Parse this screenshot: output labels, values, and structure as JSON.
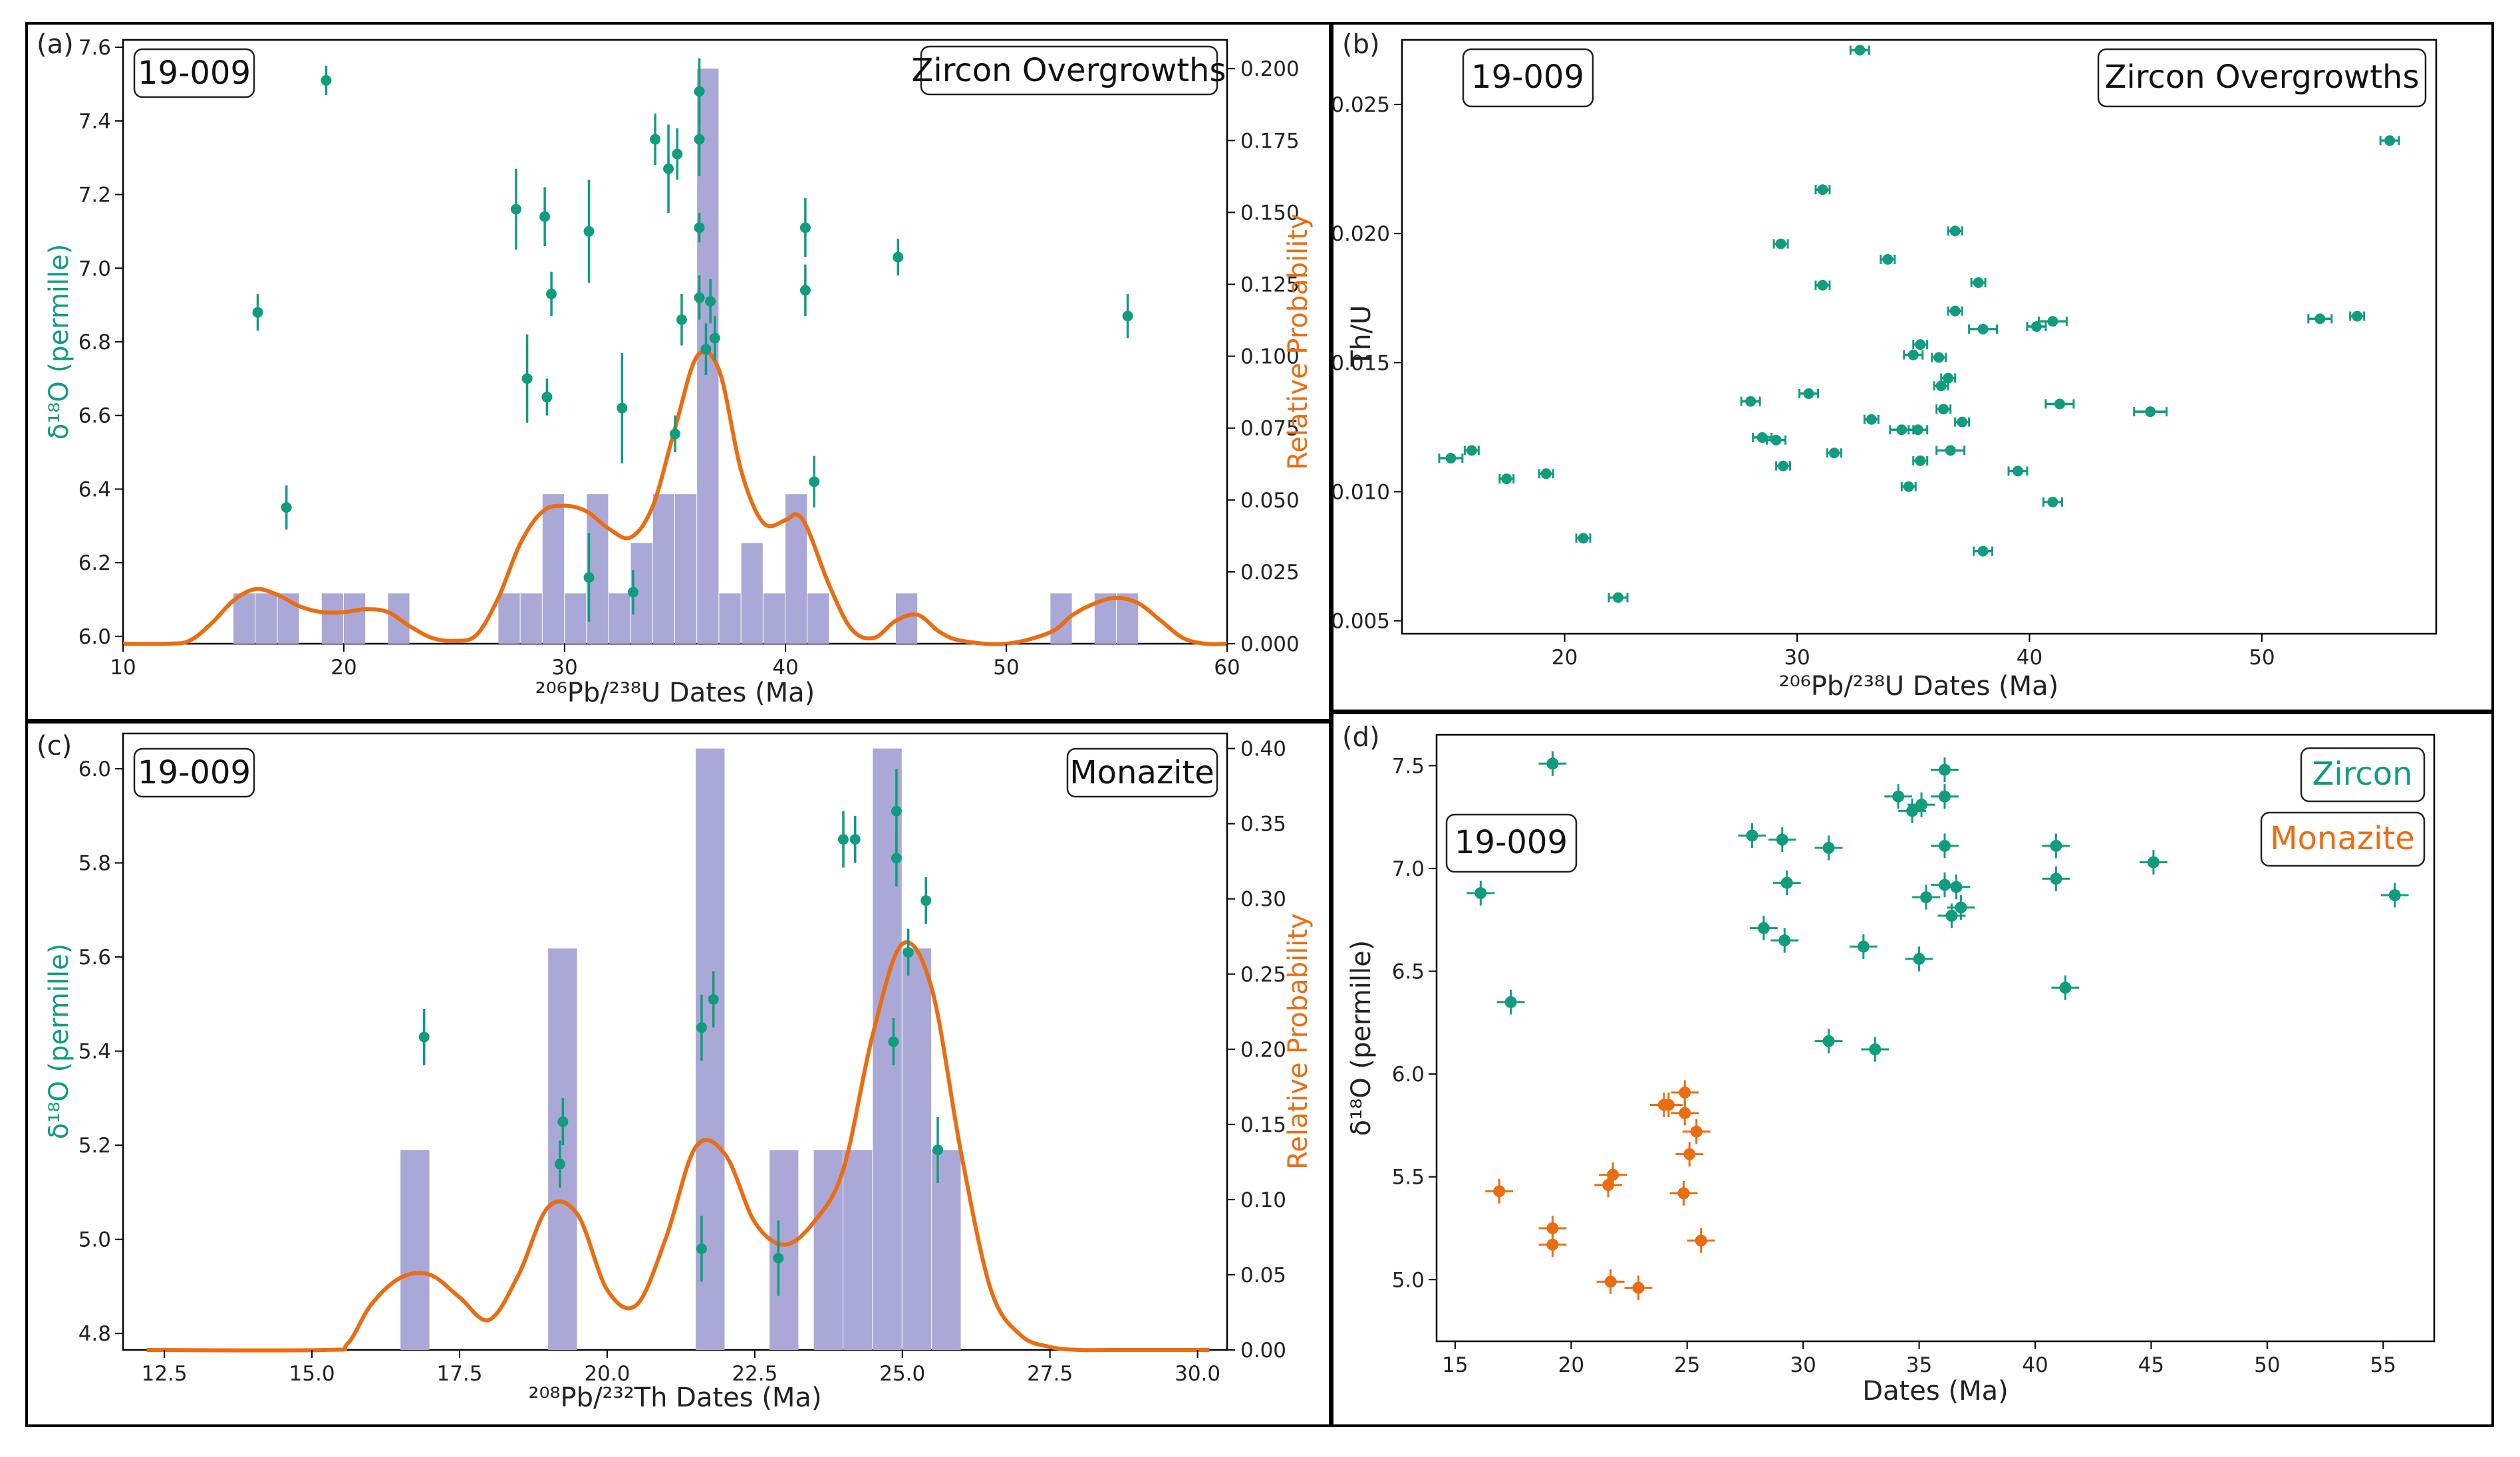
{
  "colors": {
    "zircon": "#119c7e",
    "monazite": "#ea6d12",
    "kde": "#ea6d12",
    "hist": "#aaa8d6"
  },
  "panels": [
    {
      "letter": "(a)",
      "sample": "19-009",
      "label": "Zircon Overgrowths"
    },
    {
      "letter": "(b)",
      "sample": "19-009",
      "label": "Zircon Overgrowths"
    },
    {
      "letter": "(c)",
      "sample": "19-009",
      "label": "Monazite"
    },
    {
      "letter": "(d)",
      "sample": "19-009",
      "legend": [
        "Zircon",
        "Monazite"
      ]
    }
  ],
  "chart_data": [
    {
      "panel": "(a)",
      "type": "scatter",
      "title": "Zircon Overgrowths",
      "xlabel": "²⁰⁶Pb/²³⁸U Dates (Ma)",
      "ylabel": "δ¹⁸O (permille)",
      "y2label": "Relative Probability",
      "xlim": [
        10,
        60
      ],
      "ylim": [
        5.98,
        7.62
      ],
      "y2lim": [
        0,
        0.21
      ],
      "xticks": [
        10,
        20,
        30,
        40,
        50,
        60
      ],
      "yticks": [
        6.0,
        6.2,
        6.4,
        6.6,
        6.8,
        7.0,
        7.2,
        7.4,
        7.6
      ],
      "y2ticks": [
        0.0,
        0.025,
        0.05,
        0.075,
        0.1,
        0.125,
        0.15,
        0.175,
        0.2
      ],
      "points": [
        {
          "x": 16.1,
          "y": 6.88,
          "e": 0.05
        },
        {
          "x": 17.4,
          "y": 6.35,
          "e": 0.06
        },
        {
          "x": 19.2,
          "y": 7.51,
          "e": 0.04
        },
        {
          "x": 27.8,
          "y": 7.16,
          "e": 0.11
        },
        {
          "x": 28.3,
          "y": 6.7,
          "e": 0.12
        },
        {
          "x": 29.1,
          "y": 7.14,
          "e": 0.08
        },
        {
          "x": 29.2,
          "y": 6.65,
          "e": 0.05
        },
        {
          "x": 29.4,
          "y": 6.93,
          "e": 0.06
        },
        {
          "x": 31.1,
          "y": 7.1,
          "e": 0.14
        },
        {
          "x": 31.1,
          "y": 6.16,
          "e": 0.12
        },
        {
          "x": 32.6,
          "y": 6.62,
          "e": 0.15
        },
        {
          "x": 33.1,
          "y": 6.12,
          "e": 0.06
        },
        {
          "x": 34.1,
          "y": 7.35,
          "e": 0.07
        },
        {
          "x": 34.7,
          "y": 7.27,
          "e": 0.12
        },
        {
          "x": 35.1,
          "y": 7.31,
          "e": 0.07
        },
        {
          "x": 35.0,
          "y": 6.55,
          "e": 0.05
        },
        {
          "x": 35.3,
          "y": 6.86,
          "e": 0.07
        },
        {
          "x": 36.1,
          "y": 7.48,
          "e": 0.09
        },
        {
          "x": 36.1,
          "y": 7.35,
          "e": 0.1
        },
        {
          "x": 36.1,
          "y": 7.11,
          "e": 0.04
        },
        {
          "x": 36.1,
          "y": 6.92,
          "e": 0.06
        },
        {
          "x": 36.4,
          "y": 6.78,
          "e": 0.07
        },
        {
          "x": 36.6,
          "y": 6.91,
          "e": 0.06
        },
        {
          "x": 36.8,
          "y": 6.81,
          "e": 0.06
        },
        {
          "x": 40.9,
          "y": 6.94,
          "e": 0.07
        },
        {
          "x": 40.9,
          "y": 7.11,
          "e": 0.08
        },
        {
          "x": 41.3,
          "y": 6.42,
          "e": 0.07
        },
        {
          "x": 45.1,
          "y": 7.03,
          "e": 0.05
        },
        {
          "x": 55.5,
          "y": 6.87,
          "e": 0.06
        }
      ],
      "histogram": {
        "bin_width": 1.0,
        "bins": [
          {
            "x": 15,
            "v": 0.0175
          },
          {
            "x": 16,
            "v": 0.0175
          },
          {
            "x": 17,
            "v": 0.0175
          },
          {
            "x": 19,
            "v": 0.0175
          },
          {
            "x": 20,
            "v": 0.0175
          },
          {
            "x": 22,
            "v": 0.0175
          },
          {
            "x": 27,
            "v": 0.0175
          },
          {
            "x": 28,
            "v": 0.0175
          },
          {
            "x": 29,
            "v": 0.052
          },
          {
            "x": 30,
            "v": 0.0175
          },
          {
            "x": 31,
            "v": 0.052
          },
          {
            "x": 32,
            "v": 0.0175
          },
          {
            "x": 33,
            "v": 0.035
          },
          {
            "x": 34,
            "v": 0.052
          },
          {
            "x": 35,
            "v": 0.052
          },
          {
            "x": 36,
            "v": 0.2
          },
          {
            "x": 37,
            "v": 0.0175
          },
          {
            "x": 38,
            "v": 0.035
          },
          {
            "x": 39,
            "v": 0.0175
          },
          {
            "x": 40,
            "v": 0.052
          },
          {
            "x": 41,
            "v": 0.0175
          },
          {
            "x": 45,
            "v": 0.0175
          },
          {
            "x": 52,
            "v": 0.0175
          },
          {
            "x": 54,
            "v": 0.0175
          },
          {
            "x": 55,
            "v": 0.0175
          }
        ]
      },
      "kde": {
        "x": [
          10,
          12,
          13,
          14,
          15,
          16,
          17,
          18,
          19,
          20,
          21,
          22,
          23,
          24,
          25,
          26,
          27,
          28,
          29,
          30,
          31,
          32,
          33,
          34,
          35,
          36,
          37,
          38,
          39,
          40,
          40.5,
          41,
          42,
          43,
          44,
          45,
          46,
          47,
          48,
          50,
          52,
          53,
          54,
          55,
          56,
          57,
          58,
          59,
          60
        ],
        "y": [
          0,
          0,
          0.001,
          0.007,
          0.015,
          0.019,
          0.017,
          0.013,
          0.011,
          0.011,
          0.012,
          0.011,
          0.006,
          0.002,
          0.001,
          0.003,
          0.016,
          0.035,
          0.046,
          0.048,
          0.046,
          0.04,
          0.037,
          0.048,
          0.075,
          0.1,
          0.095,
          0.06,
          0.042,
          0.043,
          0.045,
          0.04,
          0.02,
          0.005,
          0.002,
          0.008,
          0.01,
          0.004,
          0.001,
          0.0,
          0.004,
          0.01,
          0.014,
          0.016,
          0.014,
          0.008,
          0.002,
          0.0,
          0
        ]
      }
    },
    {
      "panel": "(b)",
      "type": "scatter",
      "title": "Zircon Overgrowths",
      "xlabel": "²⁰⁶Pb/²³⁸U Dates (Ma)",
      "ylabel": "Th/U",
      "xlim": [
        13,
        57.5
      ],
      "ylim": [
        0.0045,
        0.0275
      ],
      "xticks": [
        20,
        30,
        40,
        50
      ],
      "yticks": [
        0.005,
        0.01,
        0.015,
        0.02,
        0.025
      ],
      "points": [
        {
          "x": 15.1,
          "y": 0.0113,
          "e": 0.5
        },
        {
          "x": 16.0,
          "y": 0.0116,
          "e": 0.3
        },
        {
          "x": 17.5,
          "y": 0.0105,
          "e": 0.3
        },
        {
          "x": 19.2,
          "y": 0.0107,
          "e": 0.3
        },
        {
          "x": 20.8,
          "y": 0.0082,
          "e": 0.3
        },
        {
          "x": 22.3,
          "y": 0.0059,
          "e": 0.4
        },
        {
          "x": 28.0,
          "y": 0.0135,
          "e": 0.4
        },
        {
          "x": 28.5,
          "y": 0.0121,
          "e": 0.4
        },
        {
          "x": 29.1,
          "y": 0.012,
          "e": 0.4
        },
        {
          "x": 29.4,
          "y": 0.011,
          "e": 0.3
        },
        {
          "x": 29.3,
          "y": 0.0196,
          "e": 0.3
        },
        {
          "x": 30.5,
          "y": 0.0138,
          "e": 0.4
        },
        {
          "x": 31.1,
          "y": 0.0217,
          "e": 0.3
        },
        {
          "x": 31.1,
          "y": 0.018,
          "e": 0.3
        },
        {
          "x": 31.6,
          "y": 0.0115,
          "e": 0.3
        },
        {
          "x": 32.7,
          "y": 0.0271,
          "e": 0.4
        },
        {
          "x": 33.2,
          "y": 0.0128,
          "e": 0.3
        },
        {
          "x": 33.9,
          "y": 0.019,
          "e": 0.3
        },
        {
          "x": 34.5,
          "y": 0.0124,
          "e": 0.5
        },
        {
          "x": 34.8,
          "y": 0.0102,
          "e": 0.3
        },
        {
          "x": 35.0,
          "y": 0.0153,
          "e": 0.4
        },
        {
          "x": 35.2,
          "y": 0.0124,
          "e": 0.4
        },
        {
          "x": 35.3,
          "y": 0.0157,
          "e": 0.3
        },
        {
          "x": 35.3,
          "y": 0.0112,
          "e": 0.3
        },
        {
          "x": 36.1,
          "y": 0.0152,
          "e": 0.3
        },
        {
          "x": 36.2,
          "y": 0.0141,
          "e": 0.3
        },
        {
          "x": 36.3,
          "y": 0.0132,
          "e": 0.3
        },
        {
          "x": 36.5,
          "y": 0.0144,
          "e": 0.3
        },
        {
          "x": 36.6,
          "y": 0.0116,
          "e": 0.6
        },
        {
          "x": 36.8,
          "y": 0.017,
          "e": 0.3
        },
        {
          "x": 36.8,
          "y": 0.0201,
          "e": 0.3
        },
        {
          "x": 37.1,
          "y": 0.0127,
          "e": 0.3
        },
        {
          "x": 37.8,
          "y": 0.0181,
          "e": 0.3
        },
        {
          "x": 38.0,
          "y": 0.0163,
          "e": 0.6
        },
        {
          "x": 38.0,
          "y": 0.0077,
          "e": 0.4
        },
        {
          "x": 39.5,
          "y": 0.0108,
          "e": 0.4
        },
        {
          "x": 40.3,
          "y": 0.0164,
          "e": 0.4
        },
        {
          "x": 41.0,
          "y": 0.0166,
          "e": 0.6
        },
        {
          "x": 41.0,
          "y": 0.0096,
          "e": 0.4
        },
        {
          "x": 41.3,
          "y": 0.0134,
          "e": 0.6
        },
        {
          "x": 45.2,
          "y": 0.0131,
          "e": 0.7
        },
        {
          "x": 52.5,
          "y": 0.0167,
          "e": 0.5
        },
        {
          "x": 54.1,
          "y": 0.0168,
          "e": 0.3
        },
        {
          "x": 55.5,
          "y": 0.0236,
          "e": 0.4
        }
      ]
    },
    {
      "panel": "(c)",
      "type": "scatter",
      "title": "Monazite",
      "xlabel": "²⁰⁸Pb/²³²Th Dates (Ma)",
      "ylabel": "δ¹⁸O (permille)",
      "y2label": "Relative Probability",
      "xlim": [
        11.8,
        30.5
      ],
      "ylim": [
        4.765,
        6.075
      ],
      "y2lim": [
        0,
        0.41
      ],
      "xticks": [
        12.5,
        15.0,
        17.5,
        20.0,
        22.5,
        25.0,
        27.5,
        30.0
      ],
      "yticks": [
        4.8,
        5.0,
        5.2,
        5.4,
        5.6,
        5.8,
        6.0
      ],
      "y2ticks": [
        0.0,
        0.05,
        0.1,
        0.15,
        0.2,
        0.25,
        0.3,
        0.35,
        0.4
      ],
      "points": [
        {
          "x": 16.9,
          "y": 5.43,
          "e": 0.06
        },
        {
          "x": 19.2,
          "y": 5.16,
          "e": 0.05
        },
        {
          "x": 19.25,
          "y": 5.25,
          "e": 0.05
        },
        {
          "x": 21.6,
          "y": 5.45,
          "e": 0.07
        },
        {
          "x": 21.6,
          "y": 4.98,
          "e": 0.07
        },
        {
          "x": 21.8,
          "y": 5.51,
          "e": 0.06
        },
        {
          "x": 22.9,
          "y": 4.96,
          "e": 0.08
        },
        {
          "x": 24.0,
          "y": 5.85,
          "e": 0.06
        },
        {
          "x": 24.2,
          "y": 5.85,
          "e": 0.05
        },
        {
          "x": 24.9,
          "y": 5.91,
          "e": 0.09
        },
        {
          "x": 24.9,
          "y": 5.81,
          "e": 0.06
        },
        {
          "x": 24.85,
          "y": 5.42,
          "e": 0.05
        },
        {
          "x": 25.1,
          "y": 5.61,
          "e": 0.05
        },
        {
          "x": 25.4,
          "y": 5.72,
          "e": 0.05
        },
        {
          "x": 25.6,
          "y": 5.19,
          "e": 0.07
        }
      ],
      "histogram": {
        "bin_width": 0.5,
        "bins": [
          {
            "x": 16.5,
            "v": 0.133
          },
          {
            "x": 19.0,
            "v": 0.267
          },
          {
            "x": 21.5,
            "v": 0.4
          },
          {
            "x": 22.75,
            "v": 0.133
          },
          {
            "x": 23.5,
            "v": 0.133
          },
          {
            "x": 24.0,
            "v": 0.133
          },
          {
            "x": 24.5,
            "v": 0.4
          },
          {
            "x": 25.0,
            "v": 0.267
          },
          {
            "x": 25.5,
            "v": 0.133
          }
        ]
      },
      "kde": {
        "x": [
          12.2,
          15.2,
          15.6,
          16.0,
          16.5,
          17.0,
          17.5,
          18.0,
          18.5,
          19.0,
          19.5,
          20.0,
          20.5,
          21.0,
          21.5,
          22.0,
          22.5,
          23.0,
          23.5,
          24.0,
          24.5,
          25.0,
          25.5,
          26.0,
          26.5,
          27.0,
          27.5,
          28.0,
          28.5,
          29.0,
          29.5,
          30.2
        ],
        "y": [
          0,
          0,
          0.004,
          0.03,
          0.048,
          0.05,
          0.035,
          0.02,
          0.05,
          0.095,
          0.09,
          0.04,
          0.03,
          0.075,
          0.135,
          0.13,
          0.085,
          0.07,
          0.085,
          0.12,
          0.21,
          0.27,
          0.24,
          0.13,
          0.04,
          0.01,
          0.002,
          0,
          0,
          0,
          0,
          0
        ]
      }
    },
    {
      "panel": "(d)",
      "type": "scatter",
      "xlabel": "Dates (Ma)",
      "ylabel": "δ¹⁸O (permille)",
      "xlim": [
        14.2,
        57.2
      ],
      "ylim": [
        4.7,
        7.65
      ],
      "xticks": [
        15,
        20,
        25,
        30,
        35,
        40,
        45,
        50,
        55
      ],
      "yticks": [
        5.0,
        5.5,
        6.0,
        6.5,
        7.0,
        7.5
      ],
      "series": [
        {
          "name": "Zircon",
          "points": [
            {
              "x": 16.1,
              "y": 6.88
            },
            {
              "x": 17.4,
              "y": 6.35
            },
            {
              "x": 19.2,
              "y": 7.51
            },
            {
              "x": 27.8,
              "y": 7.16
            },
            {
              "x": 28.3,
              "y": 6.71
            },
            {
              "x": 29.1,
              "y": 7.14
            },
            {
              "x": 29.2,
              "y": 6.65
            },
            {
              "x": 29.3,
              "y": 6.93
            },
            {
              "x": 31.1,
              "y": 7.1
            },
            {
              "x": 31.1,
              "y": 6.16
            },
            {
              "x": 32.6,
              "y": 6.62
            },
            {
              "x": 33.1,
              "y": 6.12
            },
            {
              "x": 34.1,
              "y": 7.35
            },
            {
              "x": 34.7,
              "y": 7.28
            },
            {
              "x": 35.1,
              "y": 7.31
            },
            {
              "x": 35.0,
              "y": 6.56
            },
            {
              "x": 35.3,
              "y": 6.86
            },
            {
              "x": 36.1,
              "y": 7.48
            },
            {
              "x": 36.1,
              "y": 7.35
            },
            {
              "x": 36.1,
              "y": 7.11
            },
            {
              "x": 36.1,
              "y": 6.92
            },
            {
              "x": 36.4,
              "y": 6.77
            },
            {
              "x": 36.6,
              "y": 6.91
            },
            {
              "x": 36.8,
              "y": 6.81
            },
            {
              "x": 40.9,
              "y": 6.95
            },
            {
              "x": 40.9,
              "y": 7.11
            },
            {
              "x": 41.3,
              "y": 6.42
            },
            {
              "x": 45.1,
              "y": 7.03
            },
            {
              "x": 55.5,
              "y": 6.87
            }
          ]
        },
        {
          "name": "Monazite",
          "points": [
            {
              "x": 16.9,
              "y": 5.43
            },
            {
              "x": 19.2,
              "y": 5.17
            },
            {
              "x": 19.2,
              "y": 5.25
            },
            {
              "x": 21.6,
              "y": 5.46
            },
            {
              "x": 21.8,
              "y": 5.51
            },
            {
              "x": 21.7,
              "y": 4.99
            },
            {
              "x": 22.9,
              "y": 4.96
            },
            {
              "x": 24.0,
              "y": 5.85
            },
            {
              "x": 24.2,
              "y": 5.85
            },
            {
              "x": 24.9,
              "y": 5.91
            },
            {
              "x": 24.9,
              "y": 5.81
            },
            {
              "x": 24.85,
              "y": 5.42
            },
            {
              "x": 25.1,
              "y": 5.61
            },
            {
              "x": 25.4,
              "y": 5.72
            },
            {
              "x": 25.6,
              "y": 5.19
            }
          ]
        }
      ]
    }
  ]
}
